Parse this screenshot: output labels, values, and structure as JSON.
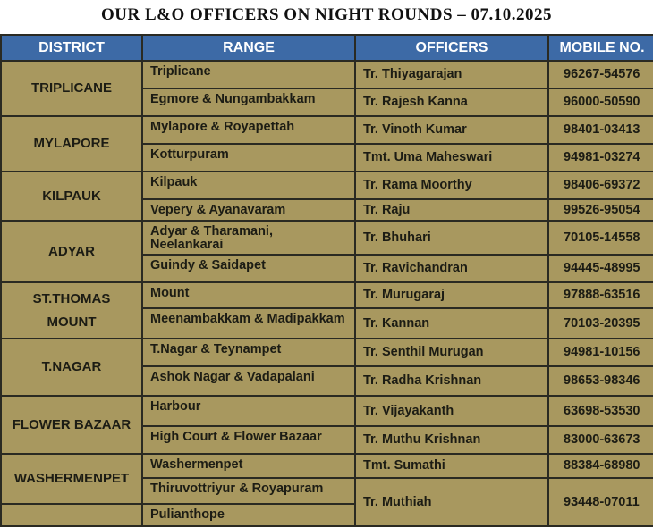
{
  "title": "OUR L&O OFFICERS ON NIGHT ROUNDS – 07.10.2025",
  "headers": [
    "DISTRICT",
    "RANGE",
    "OFFICERS",
    "MOBILE NO."
  ],
  "districts": [
    {
      "name": "TRIPLICANE",
      "rows": [
        {
          "range": "Triplicane",
          "officer": "Tr. Thiyagarajan",
          "mobile": "96267-54576"
        },
        {
          "range": "Egmore &  Nungambakkam",
          "officer": "Tr. Rajesh Kanna",
          "mobile": "96000-50590"
        }
      ]
    },
    {
      "name": "MYLAPORE",
      "rows": [
        {
          "range": "Mylapore & Royapettah",
          "officer": "Tr. Vinoth Kumar",
          "mobile": "98401-03413"
        },
        {
          "range": "Kotturpuram",
          "officer": "Tmt. Uma Maheswari",
          "mobile": "94981-03274"
        }
      ]
    },
    {
      "name": "KILPAUK",
      "rows": [
        {
          "range": "Kilpauk",
          "officer": "Tr. Rama Moorthy",
          "mobile": "98406-69372"
        },
        {
          "range": "Vepery  & Ayanavaram",
          "officer": "Tr. Raju",
          "mobile": "99526-95054"
        }
      ]
    },
    {
      "name": "ADYAR",
      "rows": [
        {
          "range": "Adyar & Tharamani, Neelankarai",
          "officer": "Tr. Bhuhari",
          "mobile": "70105-14558"
        },
        {
          "range": "Guindy & Saidapet",
          "officer": "Tr. Ravichandran",
          "mobile": "94445-48995"
        }
      ]
    },
    {
      "name": "ST.THOMAS MOUNT",
      "rows": [
        {
          "range": "Mount",
          "officer": "Tr. Murugaraj",
          "mobile": "97888-63516"
        },
        {
          "range": "Meenambakkam & Madipakkam",
          "officer": "Tr. Kannan",
          "mobile": "70103-20395"
        }
      ]
    },
    {
      "name": "T.NAGAR",
      "rows": [
        {
          "range": "T.Nagar & Teynampet",
          "officer": "Tr. Senthil Murugan",
          "mobile": "94981-10156"
        },
        {
          "range": "Ashok Nagar & Vadapalani",
          "officer": "Tr. Radha Krishnan",
          "mobile": "98653-98346"
        }
      ]
    },
    {
      "name": "FLOWER BAZAAR",
      "rows": [
        {
          "range": "Harbour",
          "officer": "Tr. Vijayakanth",
          "mobile": "63698-53530"
        },
        {
          "range": "High Court &  Flower Bazaar",
          "officer": "Tr. Muthu Krishnan",
          "mobile": "83000-63673"
        }
      ]
    },
    {
      "name": "WASHERMENPET",
      "rows": [
        {
          "range": "Washermenpet",
          "officer": "Tmt. Sumathi",
          "mobile": "88384-68980"
        },
        {
          "range": "Thiruvottriyur & Royapuram",
          "officer": "Tr. Muthiah",
          "mobile": "93448-07011"
        }
      ]
    },
    {
      "name": "",
      "rows": [
        {
          "range": "Pulianthope"
        }
      ]
    }
  ],
  "colors": {
    "header": "#3d6aa6",
    "body": "#a8985f"
  }
}
